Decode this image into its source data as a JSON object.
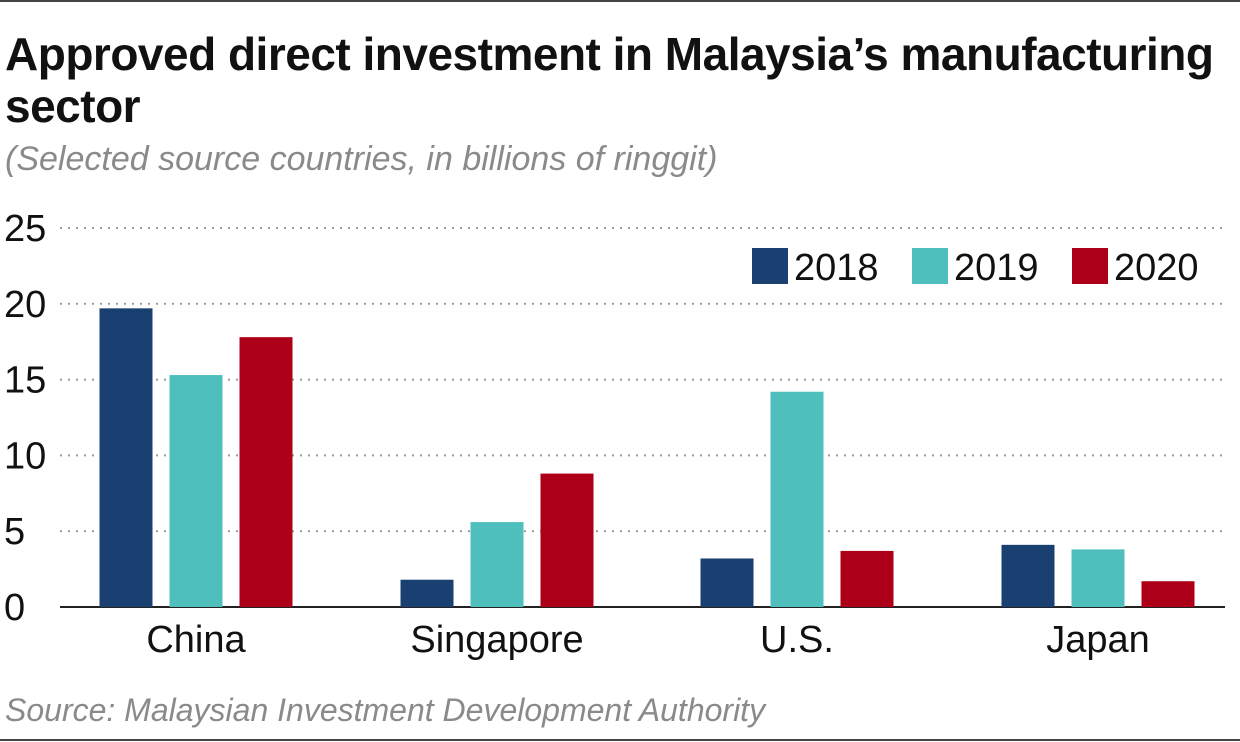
{
  "title": "Approved direct investment in Malaysia’s manufacturing sector",
  "subtitle": "(Selected source countries, in billions of ringgit)",
  "source": "Source: Malaysian Investment Development Authority",
  "chart_data": {
    "type": "bar",
    "categories": [
      "China",
      "Singapore",
      "U.S.",
      "Japan"
    ],
    "series": [
      {
        "name": "2018",
        "color": "#1a4071",
        "values": [
          19.7,
          1.8,
          3.2,
          4.1
        ]
      },
      {
        "name": "2019",
        "color": "#4fbfbd",
        "values": [
          15.3,
          5.6,
          14.2,
          3.8
        ]
      },
      {
        "name": "2020",
        "color": "#ad0018",
        "values": [
          17.8,
          8.8,
          3.7,
          1.7
        ]
      }
    ],
    "yticks": [
      "0",
      "5",
      "10",
      "15",
      "20",
      "25"
    ],
    "ylim": [
      0,
      25
    ],
    "grid": "dotted horizontal",
    "legend_position": "top-right"
  }
}
